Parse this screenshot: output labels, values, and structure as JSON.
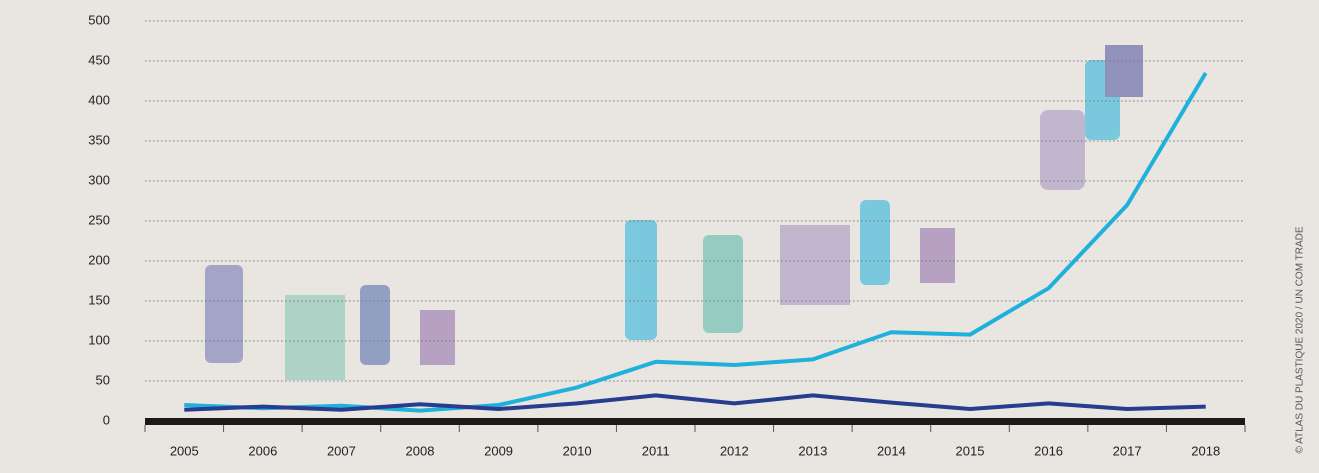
{
  "chart_data": {
    "type": "line",
    "categories": [
      "2005",
      "2006",
      "2007",
      "2008",
      "2009",
      "2010",
      "2011",
      "2012",
      "2013",
      "2014",
      "2015",
      "2016",
      "2017",
      "2018"
    ],
    "series": [
      {
        "color": "#1fb1dc",
        "values": [
          20,
          16,
          19,
          13,
          20,
          42,
          74,
          70,
          77,
          111,
          108,
          166,
          270,
          435
        ]
      },
      {
        "color": "#283d8f",
        "values": [
          14,
          18,
          14,
          21,
          15,
          22,
          32,
          22,
          32,
          23,
          15,
          22,
          15,
          18
        ]
      }
    ],
    "ylim": [
      0,
      500
    ],
    "yticks": [
      0,
      50,
      100,
      150,
      200,
      250,
      300,
      350,
      400,
      450,
      500
    ],
    "grid": true,
    "credit": "© ATLAS DU PLASTIQUE 2020 / UN COM TRADE"
  }
}
